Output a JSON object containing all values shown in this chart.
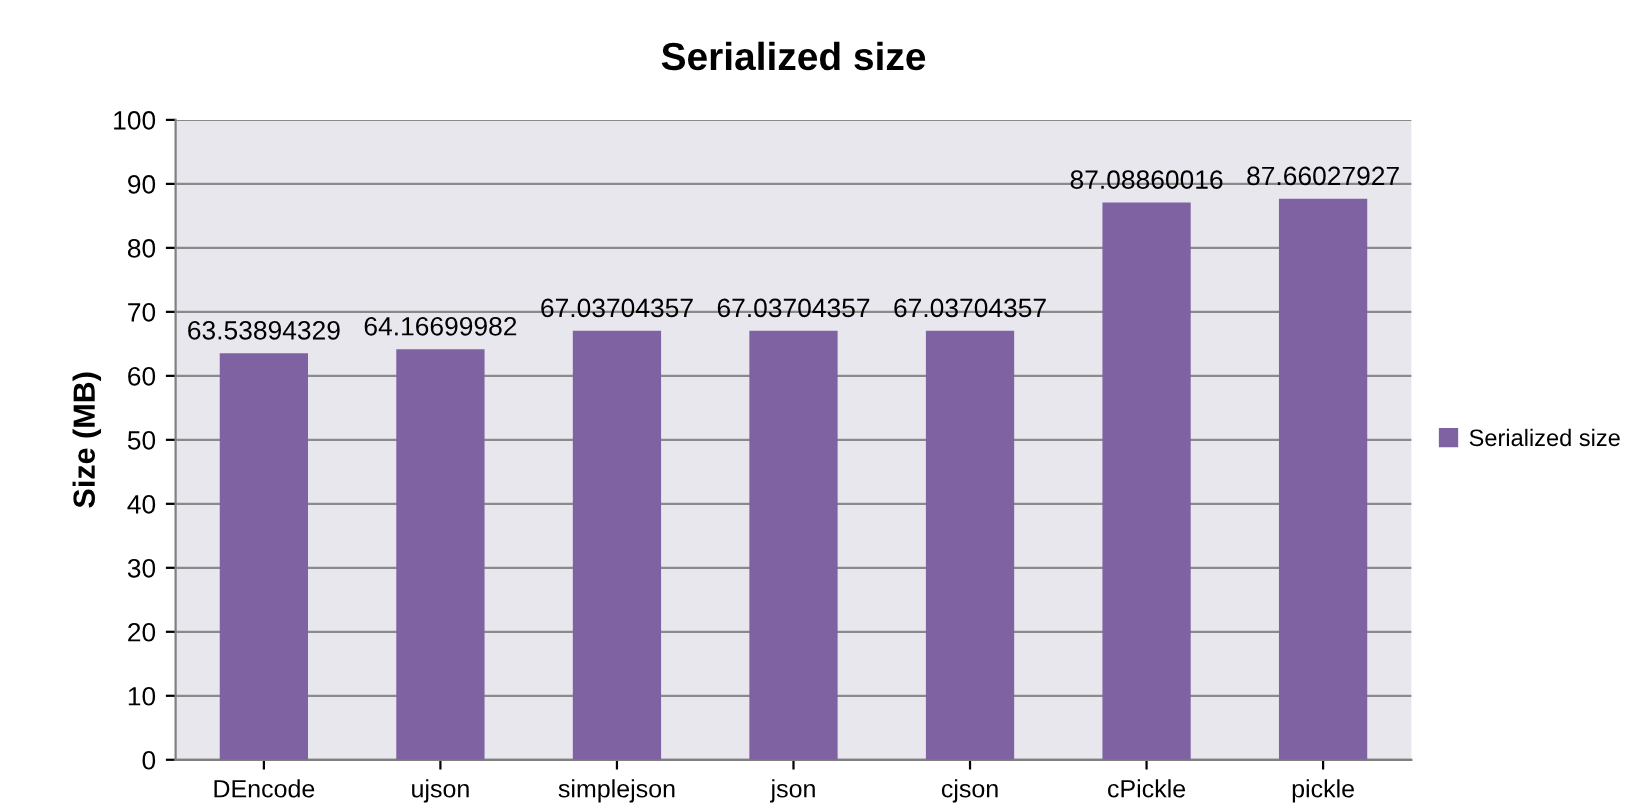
{
  "chart_data": {
    "type": "bar",
    "title": "Serialized size",
    "ylabel": "Size (MB)",
    "categories": [
      "DEncode",
      "ujson",
      "simplejson",
      "json",
      "cjson",
      "cPickle",
      "pickle"
    ],
    "series": [
      {
        "name": "Serialized size",
        "color": "#7f62a2",
        "values": [
          63.53894329,
          64.16699982,
          67.03704357,
          67.03704357,
          67.03704357,
          87.08860016,
          87.66027927
        ]
      }
    ],
    "ylim": [
      0,
      100
    ],
    "yticks": [
      0,
      10,
      20,
      30,
      40,
      50,
      60,
      70,
      80,
      90,
      100
    ],
    "grid": "y",
    "legend": "right",
    "data_labels": true
  }
}
